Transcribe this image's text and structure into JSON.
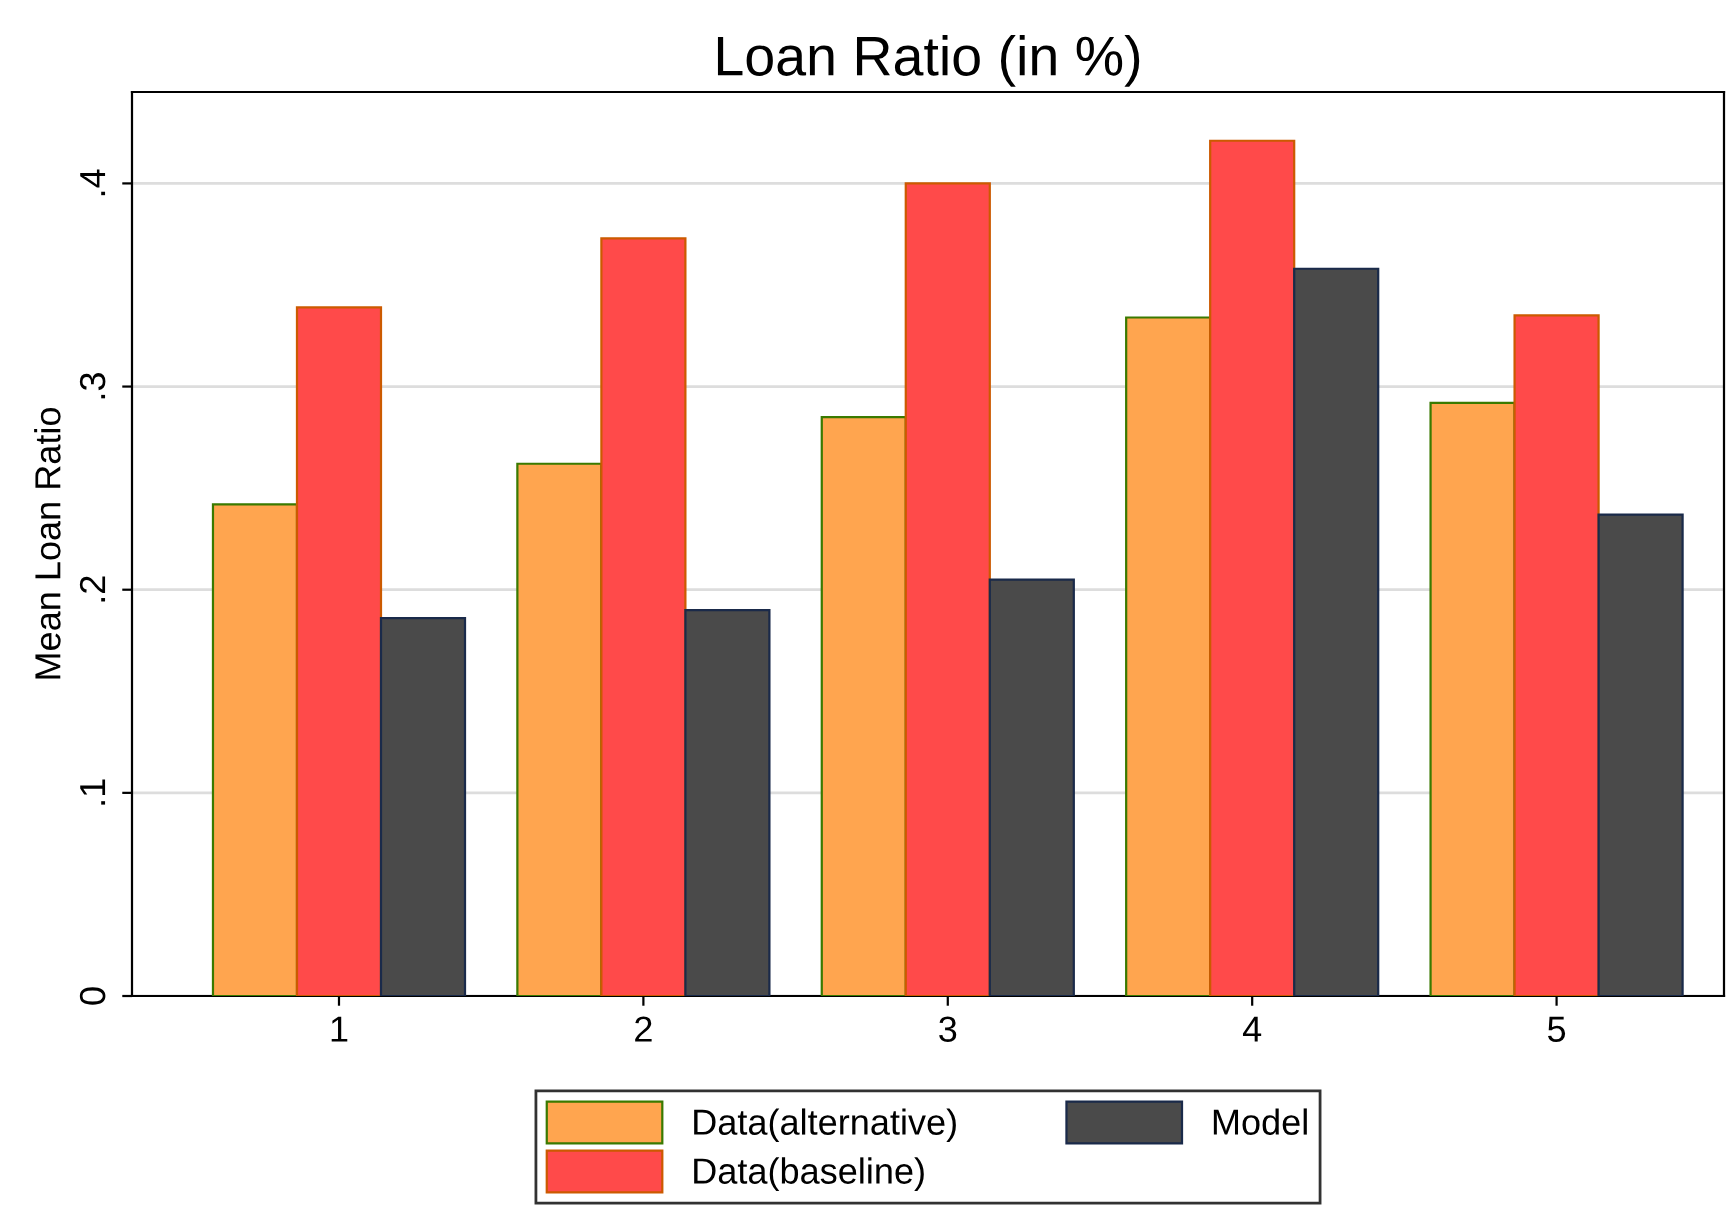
{
  "chart_data": {
    "type": "bar",
    "title": "Loan Ratio (in %)",
    "ylabel": "Mean Loan Ratio",
    "categories": [
      "1",
      "2",
      "3",
      "4",
      "5"
    ],
    "series": [
      {
        "name": "Data(alternative)",
        "color": "#ffa54f",
        "values": [
          0.242,
          0.262,
          0.285,
          0.334,
          0.292
        ]
      },
      {
        "name": "Data(baseline)",
        "color": "#ff4a4a",
        "values": [
          0.339,
          0.373,
          0.4,
          0.421,
          0.335
        ]
      },
      {
        "name": "Model",
        "color": "#4a4a4a",
        "values": [
          0.186,
          0.19,
          0.205,
          0.358,
          0.237
        ]
      }
    ],
    "ylim": [
      0,
      0.445
    ],
    "yticks": [
      0,
      {
        "value": 0.1,
        "label": ".1"
      },
      {
        "value": 0.2,
        "label": ".2"
      },
      {
        "value": 0.3,
        "label": ".3"
      },
      {
        "value": 0.4,
        "label": ".4"
      }
    ],
    "grid": "y",
    "legend": "bottom"
  }
}
